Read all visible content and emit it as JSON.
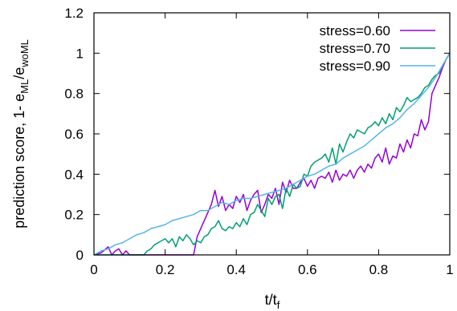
{
  "chart_data": {
    "type": "line",
    "xlabel": "t/t",
    "xlabel_sub": "f",
    "ylabel_parts": [
      "prediction score, 1- e",
      "ML",
      "/e",
      "woML"
    ],
    "xlim": [
      0,
      1
    ],
    "ylim": [
      0,
      1.2
    ],
    "x_ticks": [
      "0",
      "0.2",
      "0.4",
      "0.6",
      "0.8",
      "1"
    ],
    "y_ticks": [
      "0",
      "0.2",
      "0.4",
      "0.6",
      "0.8",
      "1",
      "1.2"
    ],
    "grid": false,
    "legend_position": "top-right",
    "series": [
      {
        "name": "stress=0.60",
        "color": "#9400d3",
        "x": [
          0.0,
          0.02,
          0.04,
          0.05,
          0.06,
          0.07,
          0.08,
          0.09,
          0.1,
          0.28,
          0.29,
          0.3,
          0.31,
          0.32,
          0.33,
          0.34,
          0.35,
          0.36,
          0.37,
          0.38,
          0.39,
          0.4,
          0.41,
          0.42,
          0.43,
          0.44,
          0.45,
          0.46,
          0.47,
          0.48,
          0.49,
          0.5,
          0.51,
          0.52,
          0.53,
          0.54,
          0.55,
          0.56,
          0.57,
          0.58,
          0.59,
          0.6,
          0.61,
          0.62,
          0.63,
          0.64,
          0.65,
          0.66,
          0.67,
          0.68,
          0.69,
          0.7,
          0.71,
          0.72,
          0.73,
          0.74,
          0.75,
          0.76,
          0.77,
          0.78,
          0.79,
          0.8,
          0.81,
          0.82,
          0.83,
          0.84,
          0.85,
          0.86,
          0.87,
          0.88,
          0.89,
          0.9,
          0.91,
          0.92,
          0.93,
          0.94,
          0.95,
          0.96,
          0.97,
          0.98,
          0.99,
          1.0
        ],
        "y": [
          0.0,
          0.01,
          0.04,
          0.0,
          0.02,
          0.03,
          0.0,
          0.02,
          0.0,
          0.0,
          0.09,
          0.13,
          0.17,
          0.21,
          0.25,
          0.32,
          0.24,
          0.29,
          0.22,
          0.25,
          0.23,
          0.29,
          0.26,
          0.3,
          0.22,
          0.27,
          0.3,
          0.32,
          0.21,
          0.25,
          0.3,
          0.28,
          0.33,
          0.25,
          0.36,
          0.31,
          0.37,
          0.33,
          0.33,
          0.36,
          0.38,
          0.34,
          0.37,
          0.33,
          0.38,
          0.39,
          0.38,
          0.41,
          0.36,
          0.42,
          0.37,
          0.4,
          0.39,
          0.42,
          0.38,
          0.42,
          0.44,
          0.41,
          0.45,
          0.43,
          0.48,
          0.5,
          0.46,
          0.53,
          0.45,
          0.49,
          0.48,
          0.55,
          0.51,
          0.57,
          0.53,
          0.6,
          0.59,
          0.67,
          0.62,
          0.66,
          0.8,
          0.84,
          0.88,
          0.93,
          0.97,
          1.0
        ]
      },
      {
        "name": "stress=0.70",
        "color": "#009e73",
        "x": [
          0.0,
          0.14,
          0.15,
          0.16,
          0.17,
          0.18,
          0.19,
          0.2,
          0.21,
          0.22,
          0.23,
          0.24,
          0.25,
          0.26,
          0.27,
          0.28,
          0.29,
          0.3,
          0.31,
          0.32,
          0.33,
          0.34,
          0.35,
          0.36,
          0.37,
          0.38,
          0.39,
          0.4,
          0.41,
          0.42,
          0.43,
          0.44,
          0.45,
          0.46,
          0.47,
          0.48,
          0.49,
          0.5,
          0.51,
          0.52,
          0.53,
          0.54,
          0.55,
          0.56,
          0.57,
          0.58,
          0.59,
          0.6,
          0.61,
          0.62,
          0.63,
          0.64,
          0.65,
          0.66,
          0.67,
          0.68,
          0.69,
          0.7,
          0.71,
          0.72,
          0.73,
          0.74,
          0.75,
          0.76,
          0.77,
          0.78,
          0.79,
          0.8,
          0.81,
          0.82,
          0.83,
          0.84,
          0.85,
          0.86,
          0.87,
          0.88,
          0.89,
          0.9,
          0.91,
          0.92,
          0.93,
          0.94,
          0.95,
          0.96,
          0.97,
          0.98,
          0.99,
          1.0
        ],
        "y": [
          0.0,
          0.0,
          0.02,
          0.03,
          0.05,
          0.06,
          0.07,
          0.08,
          0.06,
          0.08,
          0.04,
          0.09,
          0.07,
          0.1,
          0.08,
          0.05,
          0.07,
          0.06,
          0.09,
          0.1,
          0.13,
          0.14,
          0.17,
          0.13,
          0.12,
          0.14,
          0.13,
          0.16,
          0.14,
          0.18,
          0.15,
          0.2,
          0.21,
          0.25,
          0.22,
          0.19,
          0.28,
          0.25,
          0.29,
          0.3,
          0.23,
          0.33,
          0.29,
          0.35,
          0.33,
          0.34,
          0.4,
          0.39,
          0.44,
          0.46,
          0.47,
          0.48,
          0.5,
          0.46,
          0.53,
          0.45,
          0.55,
          0.51,
          0.56,
          0.6,
          0.58,
          0.62,
          0.61,
          0.6,
          0.63,
          0.64,
          0.66,
          0.64,
          0.68,
          0.65,
          0.7,
          0.67,
          0.73,
          0.71,
          0.74,
          0.78,
          0.76,
          0.77,
          0.78,
          0.8,
          0.83,
          0.84,
          0.87,
          0.89,
          0.9,
          0.94,
          0.97,
          1.0
        ]
      },
      {
        "name": "stress=0.90",
        "color": "#56b4e9",
        "x": [
          0.0,
          0.02,
          0.04,
          0.06,
          0.08,
          0.1,
          0.12,
          0.14,
          0.16,
          0.18,
          0.2,
          0.22,
          0.24,
          0.26,
          0.28,
          0.3,
          0.32,
          0.34,
          0.36,
          0.38,
          0.4,
          0.42,
          0.44,
          0.46,
          0.48,
          0.5,
          0.52,
          0.54,
          0.56,
          0.58,
          0.6,
          0.62,
          0.64,
          0.66,
          0.68,
          0.7,
          0.72,
          0.74,
          0.76,
          0.78,
          0.8,
          0.82,
          0.84,
          0.86,
          0.88,
          0.9,
          0.92,
          0.94,
          0.96,
          0.98,
          1.0
        ],
        "y": [
          0.0,
          0.02,
          0.03,
          0.05,
          0.06,
          0.08,
          0.1,
          0.11,
          0.13,
          0.14,
          0.15,
          0.17,
          0.18,
          0.19,
          0.2,
          0.22,
          0.22,
          0.24,
          0.26,
          0.25,
          0.27,
          0.28,
          0.28,
          0.29,
          0.3,
          0.31,
          0.32,
          0.33,
          0.35,
          0.37,
          0.39,
          0.4,
          0.42,
          0.44,
          0.45,
          0.48,
          0.5,
          0.52,
          0.54,
          0.57,
          0.6,
          0.63,
          0.65,
          0.68,
          0.72,
          0.75,
          0.79,
          0.83,
          0.88,
          0.94,
          1.0
        ]
      }
    ]
  }
}
